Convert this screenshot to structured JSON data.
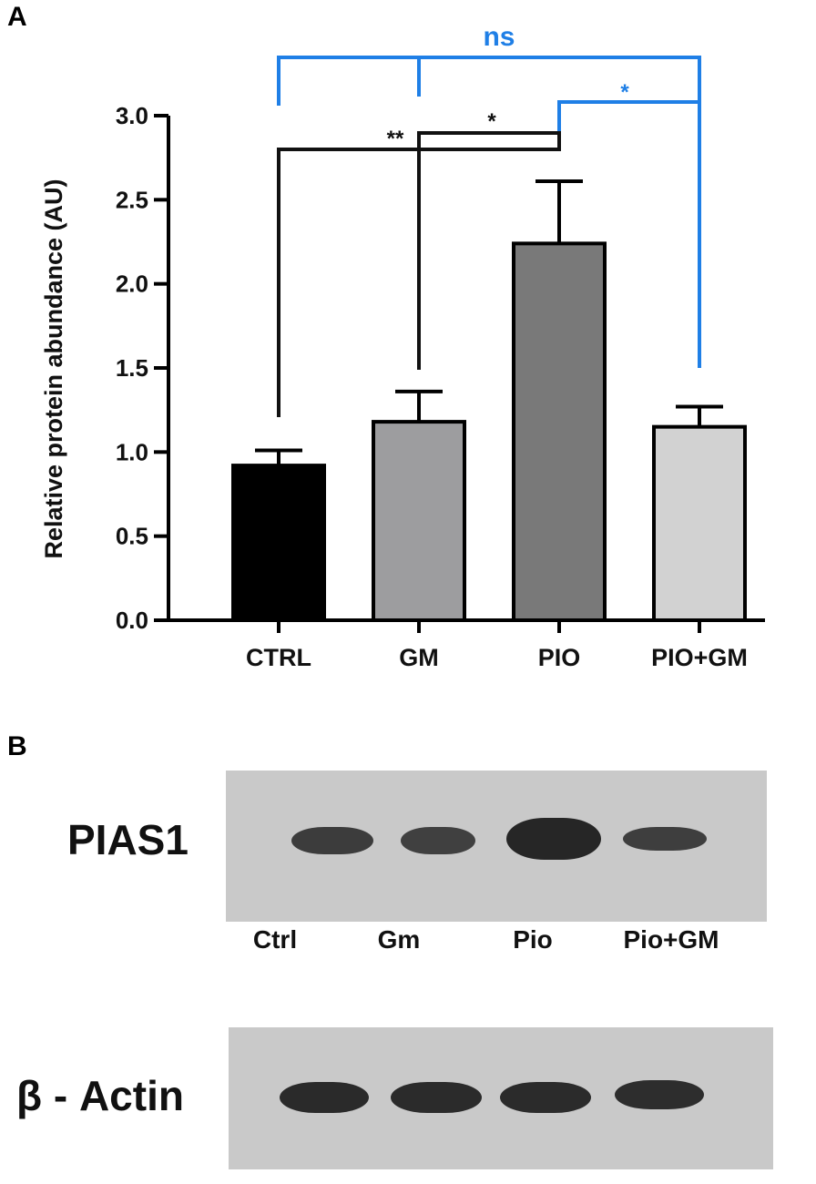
{
  "panels": {
    "a_label": "A",
    "b_label": "B"
  },
  "chart_data": {
    "type": "bar",
    "title": "",
    "xlabel": "",
    "ylabel": "Relative protein abundance (AU)",
    "ylim": [
      0,
      3.0
    ],
    "yticks": [
      "0.0",
      "0.5",
      "1.0",
      "1.5",
      "2.0",
      "2.5",
      "3.0"
    ],
    "categories": [
      "CTRL",
      "GM",
      "PIO",
      "PIO+GM"
    ],
    "values": [
      0.92,
      1.18,
      2.24,
      1.15
    ],
    "errors": [
      0.09,
      0.18,
      0.37,
      0.12
    ],
    "bar_colors": [
      "#000000",
      "#9d9d9f",
      "#797979",
      "#d2d2d2"
    ],
    "grid": false,
    "legend": "none",
    "significance": [
      {
        "label": "**",
        "from": "CTRL",
        "to": "PIO",
        "color": "#111111"
      },
      {
        "label": "*",
        "from": "GM",
        "to": "PIO",
        "color": "#111111"
      },
      {
        "label": "*",
        "from": "PIO",
        "to": "PIO+GM",
        "color": "#1f7fe6"
      },
      {
        "label": "ns",
        "from": "CTRL",
        "to": "PIO+GM",
        "color": "#1f7fe6"
      }
    ]
  },
  "blot": {
    "pias1_label": "PIAS1",
    "actin_label": "β - Actin",
    "lanes": [
      "Ctrl",
      "Gm",
      "Pio",
      "Pio+GM"
    ]
  }
}
